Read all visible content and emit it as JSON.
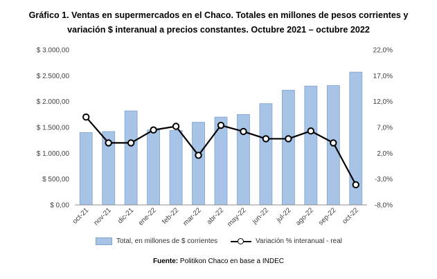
{
  "title_line1": "Gráfico 1. Ventas en supermercados en el Chaco. Totales en millones de pesos corrientes y",
  "title_line2": "variación $ interanual a precios constantes. Octubre 2021 – octubre 2022",
  "source_label": "Fuente:",
  "source_text": " Politikon Chaco en base a INDEC",
  "chart_data": {
    "type": "bar",
    "categories": [
      "oct-21",
      "nov-21",
      "dic-21",
      "ene-22",
      "feb-22",
      "mar-22",
      "abr-22",
      "may-22",
      "jun-22",
      "jul-22",
      "ago-22",
      "sep-22",
      "oct-22"
    ],
    "series": [
      {
        "name": "Total, en millones de $ corrientes",
        "type": "bar",
        "axis": "left",
        "values": [
          1400,
          1420,
          1820,
          1450,
          1440,
          1600,
          1700,
          1750,
          1960,
          2220,
          2300,
          2310,
          2570
        ]
      },
      {
        "name": "Variación % interanual - real",
        "type": "line",
        "axis": "right",
        "values": [
          9.0,
          4.0,
          4.0,
          6.5,
          7.2,
          1.6,
          7.4,
          6.2,
          4.8,
          4.8,
          6.3,
          4.0,
          -4.1
        ]
      }
    ],
    "y_left": {
      "ylim": [
        0,
        3000
      ],
      "ticks": [
        "$ 0,00",
        "$ 500,00",
        "$ 1.000,00",
        "$ 1.500,00",
        "$ 2.000,00",
        "$ 2.500,00",
        "$ 3.000,00"
      ]
    },
    "y_right": {
      "ylim": [
        -8,
        22
      ],
      "ticks": [
        "-8,0%",
        "-3,0%",
        "2,0%",
        "7,0%",
        "12,0%",
        "17,0%",
        "22,0%"
      ]
    },
    "colors": {
      "bar_fill": "#a7c3e6",
      "bar_stroke": "#7fa3cf",
      "line": "#000000",
      "marker_fill": "#ffffff"
    },
    "grid": false,
    "legend_position": "bottom"
  }
}
